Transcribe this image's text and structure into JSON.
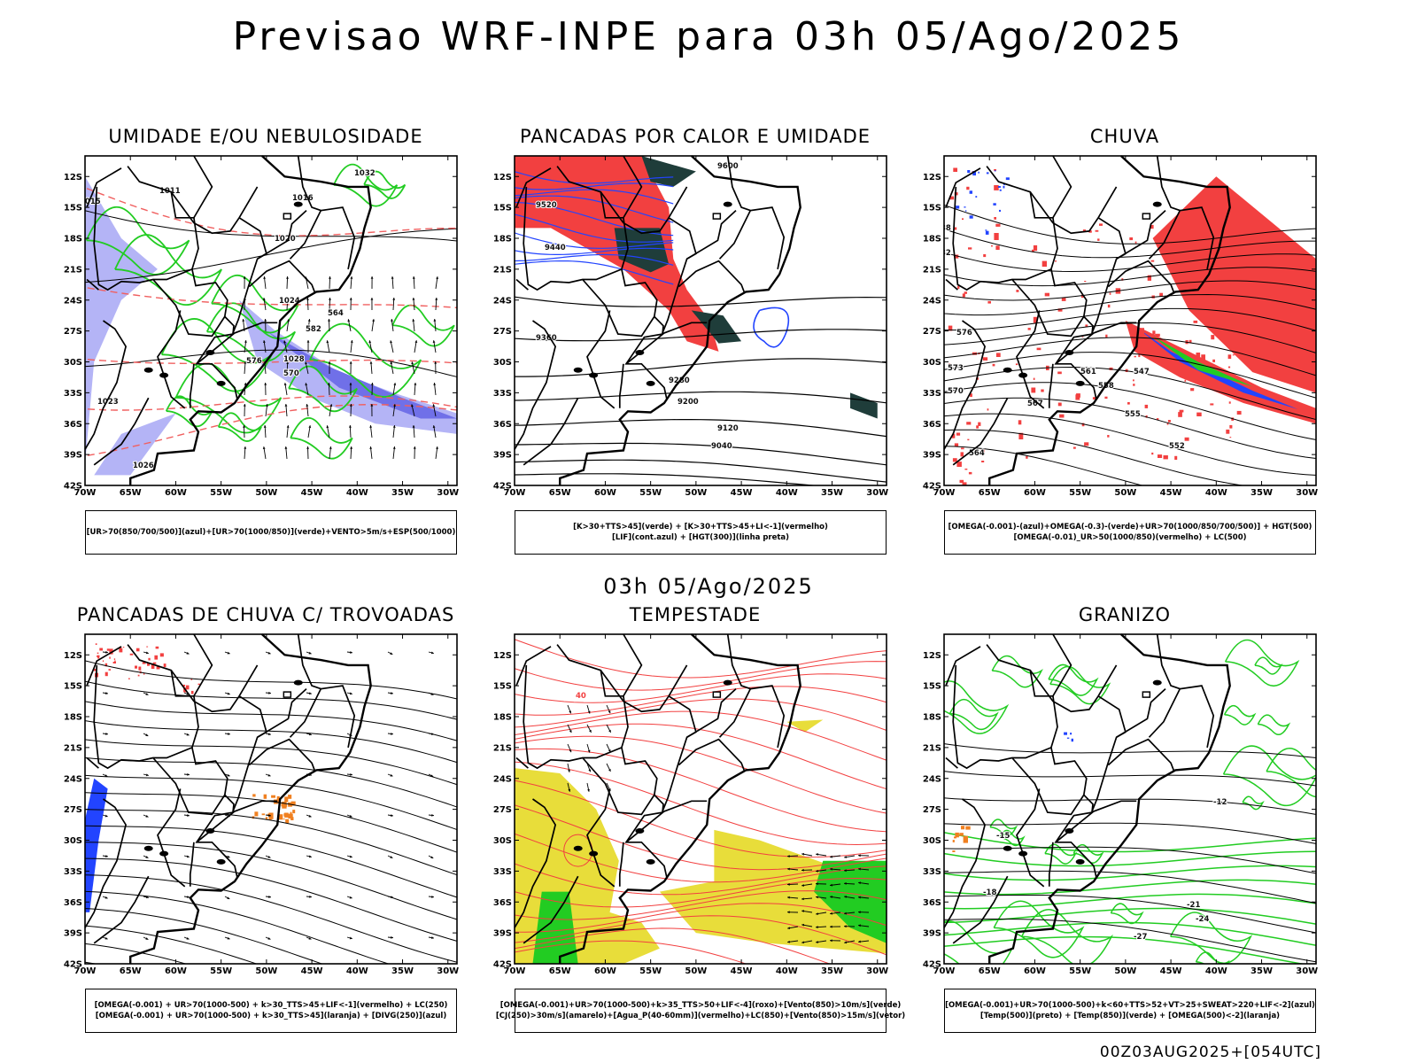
{
  "main_title": "Previsao WRF-INPE  para 03h 05/Ago/2025",
  "mid_time": "03h 05/Ago/2025",
  "footer": "00Z03AUG2025+[054UTC]",
  "lat_ticks": [
    "12S",
    "15S",
    "18S",
    "21S",
    "24S",
    "27S",
    "30S",
    "33S",
    "36S",
    "39S",
    "42S"
  ],
  "lon_ticks": [
    "70W",
    "65W",
    "60W",
    "55W",
    "50W",
    "45W",
    "40W",
    "35W",
    "30W"
  ],
  "colors": {
    "red": "#f24040",
    "green": "#22cc22",
    "blue": "#2244ff",
    "lavender": "#b4b4f6",
    "periwinkle": "#7070e8",
    "darkteal": "#1f3d3a",
    "yellow": "#e8dd3a",
    "orange": "#f08020",
    "black": "#000000",
    "dashred": "#f06060"
  },
  "panels": [
    {
      "id": "umidade",
      "title": "UMIDADE E/OU NEBULOSIDADE",
      "legend": [
        "[UR>70(850/700/500)](azul)+[UR>70(1000/850)](verde)+VENTO>5m/s+ESP(500/1000)"
      ],
      "contour_labels": [
        "1016",
        "1020",
        "1024",
        "1028",
        "1032",
        "564",
        "570",
        "576",
        "582",
        "1023",
        "1015",
        "1011",
        "1026"
      ]
    },
    {
      "id": "pancadas-calor",
      "title": "PANCADAS POR CALOR E UMIDADE",
      "legend": [
        "[K>30+TTS>45](verde) + [K>30+TTS>45+LI<-1](vermelho)",
        "[LIF](cont.azul) + [HGT(300)](linha preta)"
      ],
      "contour_labels": [
        "9600",
        "9520",
        "9440",
        "9360",
        "9280",
        "9200",
        "9120",
        "9040"
      ]
    },
    {
      "id": "chuva",
      "title": "CHUVA",
      "legend": [
        "[OMEGA(-0.001)-(azul)+OMEGA(-0.3)-(verde)+UR>70(1000/850/700/500)] + HGT(500)",
        "[OMEGA(-0.01)_UR>50(1000/850)(vermelho) + LC(500)"
      ],
      "contour_labels": [
        "588",
        "582",
        "576",
        "573",
        "570",
        "567",
        "564",
        "561",
        "558",
        "555",
        "552",
        "547"
      ]
    },
    {
      "id": "pancadas-trovoadas",
      "title": "PANCADAS DE CHUVA C/ TROVOADAS",
      "legend": [
        "[OMEGA(-0.001) + UR>70(1000-500) + k>30_TTS>45+LIF<-1](vermelho) + LC(250)",
        "[OMEGA(-0.001) + UR>70(1000-500) + k>30_TTS>45](laranja) + [DIVG(250)](azul)"
      ],
      "contour_labels": []
    },
    {
      "id": "tempestade",
      "title": "TEMPESTADE",
      "legend": [
        "[OMEGA(-0.001)+UR>70(1000-500)+k>35_TTS>50+LIF<-4](roxo)+[Vento(850)>10m/s](verde)",
        "[CJ(250)>30m/s](amarelo)+[Agua_P(40-60mm)](vermelho)+LC(850)+[Vento(850)>15m/s](vetor)"
      ],
      "contour_labels": [
        "40"
      ]
    },
    {
      "id": "granizo",
      "title": "GRANIZO",
      "legend": [
        "[OMEGA(-0.001)+UR>70(1000-500)+k<60+TTS>52+VT>25+SWEAT>220+LIF<-2](azul)",
        "[Temp(500)](preto) + [Temp(850)](verde) + [OMEGA(500)<-2](laranja)"
      ],
      "contour_labels": [
        "-12",
        "-15",
        "-18",
        "-21",
        "-24",
        "-27"
      ]
    }
  ]
}
